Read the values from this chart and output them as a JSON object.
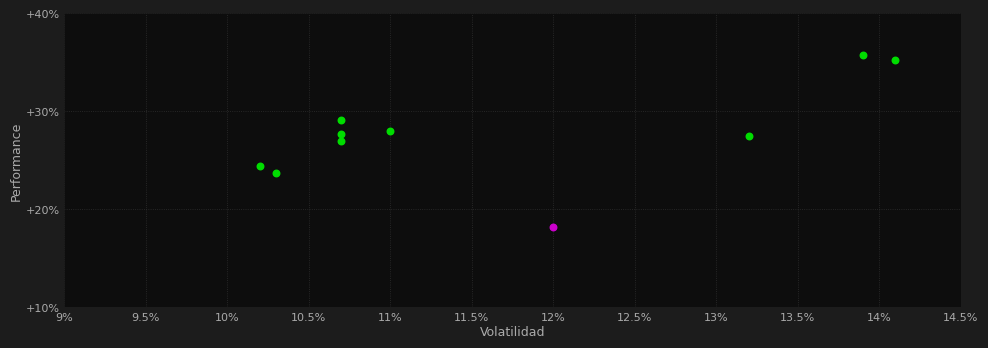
{
  "background_color": "#1c1c1c",
  "plot_bg_color": "#0d0d0d",
  "grid_color": "#2a2a2a",
  "grid_linestyle": ":",
  "xlabel": "Volatilidad",
  "ylabel": "Performance",
  "xlim": [
    0.09,
    0.145
  ],
  "ylim": [
    0.1,
    0.4
  ],
  "xticks": [
    0.09,
    0.095,
    0.1,
    0.105,
    0.11,
    0.115,
    0.12,
    0.125,
    0.13,
    0.135,
    0.14,
    0.145
  ],
  "yticks": [
    0.1,
    0.2,
    0.3,
    0.4
  ],
  "xtick_labels": [
    "9%",
    "9.5%",
    "10%",
    "10.5%",
    "11%",
    "11.5%",
    "12%",
    "12.5%",
    "13%",
    "13.5%",
    "14%",
    "14.5%"
  ],
  "ytick_labels": [
    "+10%",
    "+20%",
    "+30%",
    "+40%"
  ],
  "green_points": [
    [
      0.102,
      0.244
    ],
    [
      0.103,
      0.237
    ],
    [
      0.107,
      0.291
    ],
    [
      0.107,
      0.277
    ],
    [
      0.107,
      0.27
    ],
    [
      0.11,
      0.28
    ],
    [
      0.132,
      0.275
    ],
    [
      0.139,
      0.358
    ],
    [
      0.141,
      0.352
    ]
  ],
  "magenta_points": [
    [
      0.12,
      0.182
    ]
  ],
  "point_size": 22,
  "green_color": "#00dd00",
  "magenta_color": "#cc00cc",
  "tick_color": "#aaaaaa",
  "label_color": "#aaaaaa",
  "font_size_ticks": 8,
  "font_size_labels": 9
}
